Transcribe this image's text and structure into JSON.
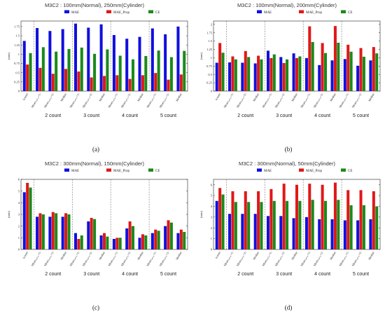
{
  "colors": {
    "mae": "#1010dd",
    "mae_prop": "#e01818",
    "ce": "#1a8a1a"
  },
  "chart_data": [
    {
      "type": "bar",
      "panel_label": "(a)",
      "title": "M3C2 : 100mm(Normal), 250mm(Cylinder)",
      "ylabel": "(mm)",
      "ylim": [
        0,
        1.9
      ],
      "yticks": [
        "0",
        "0.25",
        "0.5",
        "0.75",
        "1",
        "1.25",
        "1.5",
        "1.75"
      ],
      "ytick_values": [
        0,
        0.25,
        0.5,
        0.75,
        1.0,
        1.25,
        1.5,
        1.75
      ],
      "categories": [
        "1count",
        "Mean₍ₒᵤₜₗᵢₑᵣ=1₎",
        "Mean₍ₒᵤₜₗᵢₑᵣ=2₎",
        "Median",
        "Mean₍ₒᵤₜₗᵢₑᵣ=1₎",
        "Mean₍ₒᵤₜₗᵢₑᵣ=2₎",
        "Median",
        "Mean₍ₒᵤₜₗᵢₑᵣ=1₎",
        "Mean₍ₒᵤₜₗᵢₑᵣ=2₎",
        "Median",
        "Mean₍ₒᵤₜₗᵢₑᵣ=1₎",
        "Mean₍ₒᵤₜₗᵢₑᵣ=2₎",
        "Median"
      ],
      "groups": [
        "2 count",
        "3 count",
        "4 count",
        "5 count"
      ],
      "series": [
        {
          "name": "MAE",
          "values": [
            1.36,
            1.71,
            1.63,
            1.68,
            1.83,
            1.72,
            1.81,
            1.52,
            1.42,
            1.47,
            1.7,
            1.54,
            1.75
          ]
        },
        {
          "name": "MAE_Prop",
          "values": [
            0.72,
            0.63,
            0.47,
            0.6,
            0.53,
            0.37,
            0.41,
            0.43,
            0.33,
            0.43,
            0.49,
            0.31,
            0.45
          ]
        },
        {
          "name": "CE",
          "values": [
            1.03,
            1.19,
            1.07,
            1.14,
            1.18,
            1.01,
            1.13,
            0.96,
            0.86,
            0.95,
            1.1,
            0.92,
            1.09
          ]
        }
      ]
    },
    {
      "type": "bar",
      "panel_label": "(b)",
      "title": "M3C2 : 100mm(Normal), 200mm(Cylinder)",
      "ylabel": "(mm)",
      "ylim": [
        0,
        2.1
      ],
      "yticks": [
        "0",
        "0.25",
        "0.5",
        "0.75",
        "1",
        "1.25",
        "1.5",
        "1.75",
        "2"
      ],
      "ytick_values": [
        0,
        0.25,
        0.5,
        0.75,
        1.0,
        1.25,
        1.5,
        1.75,
        2.0
      ],
      "categories": [
        "1count",
        "Mean₍ₒᵤₜₗᵢₑᵣ=1₎",
        "Mean₍ₒᵤₜₗᵢₑᵣ=2₎",
        "Median",
        "Mean₍ₒᵤₜₗᵢₑᵣ=1₎",
        "Mean₍ₒᵤₜₗᵢₑᵣ=2₎",
        "Median",
        "Mean₍ₒᵤₜₗᵢₑᵣ=1₎",
        "Mean₍ₒᵤₜₗᵢₑᵣ=2₎",
        "Median",
        "Mean₍ₒᵤₜₗᵢₑᵣ=1₎",
        "Mean₍ₒᵤₜₗᵢₑᵣ=2₎",
        "Median"
      ],
      "groups": [
        "2 count",
        "3 count",
        "4 count",
        "5 count"
      ],
      "series": [
        {
          "name": "MAE",
          "values": [
            0.85,
            0.86,
            0.85,
            0.83,
            1.21,
            1.02,
            1.13,
            0.99,
            0.78,
            0.92,
            0.96,
            0.76,
            0.92
          ]
        },
        {
          "name": "MAE_Prop",
          "values": [
            1.44,
            1.04,
            1.2,
            1.06,
            0.99,
            0.84,
            0.99,
            1.94,
            1.44,
            1.95,
            1.39,
            1.29,
            1.32
          ]
        },
        {
          "name": "CE",
          "values": [
            1.15,
            0.95,
            1.02,
            0.95,
            1.1,
            0.95,
            1.04,
            1.47,
            1.14,
            1.45,
            1.18,
            1.03,
            1.13
          ]
        }
      ]
    },
    {
      "type": "bar",
      "panel_label": "(c)",
      "title": "M3C2 : 300mm(Normal), 150mm(Cylinder)",
      "ylabel": "(mm)",
      "ylim": [
        0,
        6
      ],
      "yticks": [
        "0",
        "1",
        "2",
        "3",
        "4",
        "5",
        "6"
      ],
      "ytick_values": [
        0,
        1,
        2,
        3,
        4,
        5,
        6
      ],
      "categories": [
        "1count",
        "Mean₍ₒᵤₜₗᵢₑᵣ=1₎",
        "Mean₍ₒᵤₜₗᵢₑᵣ=2₎",
        "Median",
        "Mean₍ₒᵤₜₗᵢₑᵣ=1₎",
        "Mean₍ₒᵤₜₗᵢₑᵣ=2₎",
        "Median",
        "Mean₍ₒᵤₜₗᵢₑᵣ=1₎",
        "Mean₍ₒᵤₜₗᵢₑᵣ=2₎",
        "Median",
        "Mean₍ₒᵤₜₗᵢₑᵣ=1₎",
        "Mean₍ₒᵤₜₗᵢₑᵣ=2₎",
        "Median"
      ],
      "groups": [
        "2 count",
        "3 count",
        "4 count",
        "5 count"
      ],
      "series": [
        {
          "name": "MAE",
          "values": [
            4.9,
            2.8,
            2.8,
            2.8,
            1.4,
            2.4,
            1.2,
            0.9,
            1.8,
            1.0,
            1.4,
            2.0,
            1.4
          ]
        },
        {
          "name": "MAE_Prop",
          "values": [
            5.7,
            3.1,
            3.2,
            3.1,
            0.9,
            2.7,
            1.4,
            1.0,
            2.4,
            1.3,
            1.7,
            2.5,
            1.7
          ]
        },
        {
          "name": "CE",
          "values": [
            5.3,
            3.0,
            3.1,
            3.0,
            1.2,
            2.6,
            1.1,
            1.0,
            2.0,
            1.2,
            1.6,
            2.3,
            1.5
          ]
        }
      ]
    },
    {
      "type": "bar",
      "panel_label": "(d)",
      "title": "M3C2 : 300mm(Normal), 50mm(Cylinder)",
      "ylabel": "(mm)",
      "ylim": [
        0,
        6.5
      ],
      "yticks": [
        "0",
        "1",
        "2",
        "3",
        "4",
        "5",
        "6"
      ],
      "ytick_values": [
        0,
        1,
        2,
        3,
        4,
        5,
        6
      ],
      "categories": [
        "1count",
        "Mean₍ₒᵤₜₗᵢₑᵣ=1₎",
        "Mean₍ₒᵤₜₗᵢₑᵣ=2₎",
        "Median",
        "Mean₍ₒᵤₜₗᵢₑᵣ=1₎",
        "Mean₍ₒᵤₜₗᵢₑᵣ=2₎",
        "Median",
        "Mean₍ₒᵤₜₗᵢₑᵣ=1₎",
        "Mean₍ₒᵤₜₗᵢₑᵣ=2₎",
        "Median",
        "Mean₍ₒᵤₜₗᵢₑᵣ=1₎",
        "Mean₍ₒᵤₜₗᵢₑᵣ=2₎",
        "Median"
      ],
      "groups": [
        "2 count",
        "3 count",
        "4 count",
        "5 count"
      ],
      "series": [
        {
          "name": "MAE",
          "values": [
            4.5,
            3.3,
            3.3,
            3.3,
            3.1,
            3.1,
            2.9,
            3.0,
            2.8,
            2.8,
            2.7,
            2.7,
            2.8
          ]
        },
        {
          "name": "MAE_Prop",
          "values": [
            5.7,
            5.4,
            5.4,
            5.4,
            5.6,
            6.1,
            6.0,
            6.1,
            6.0,
            6.2,
            5.5,
            5.5,
            5.4
          ]
        },
        {
          "name": "CE",
          "values": [
            5.1,
            4.4,
            4.4,
            4.4,
            4.5,
            4.5,
            4.5,
            4.6,
            4.5,
            4.6,
            4.1,
            4.1,
            4.0
          ]
        }
      ]
    }
  ]
}
